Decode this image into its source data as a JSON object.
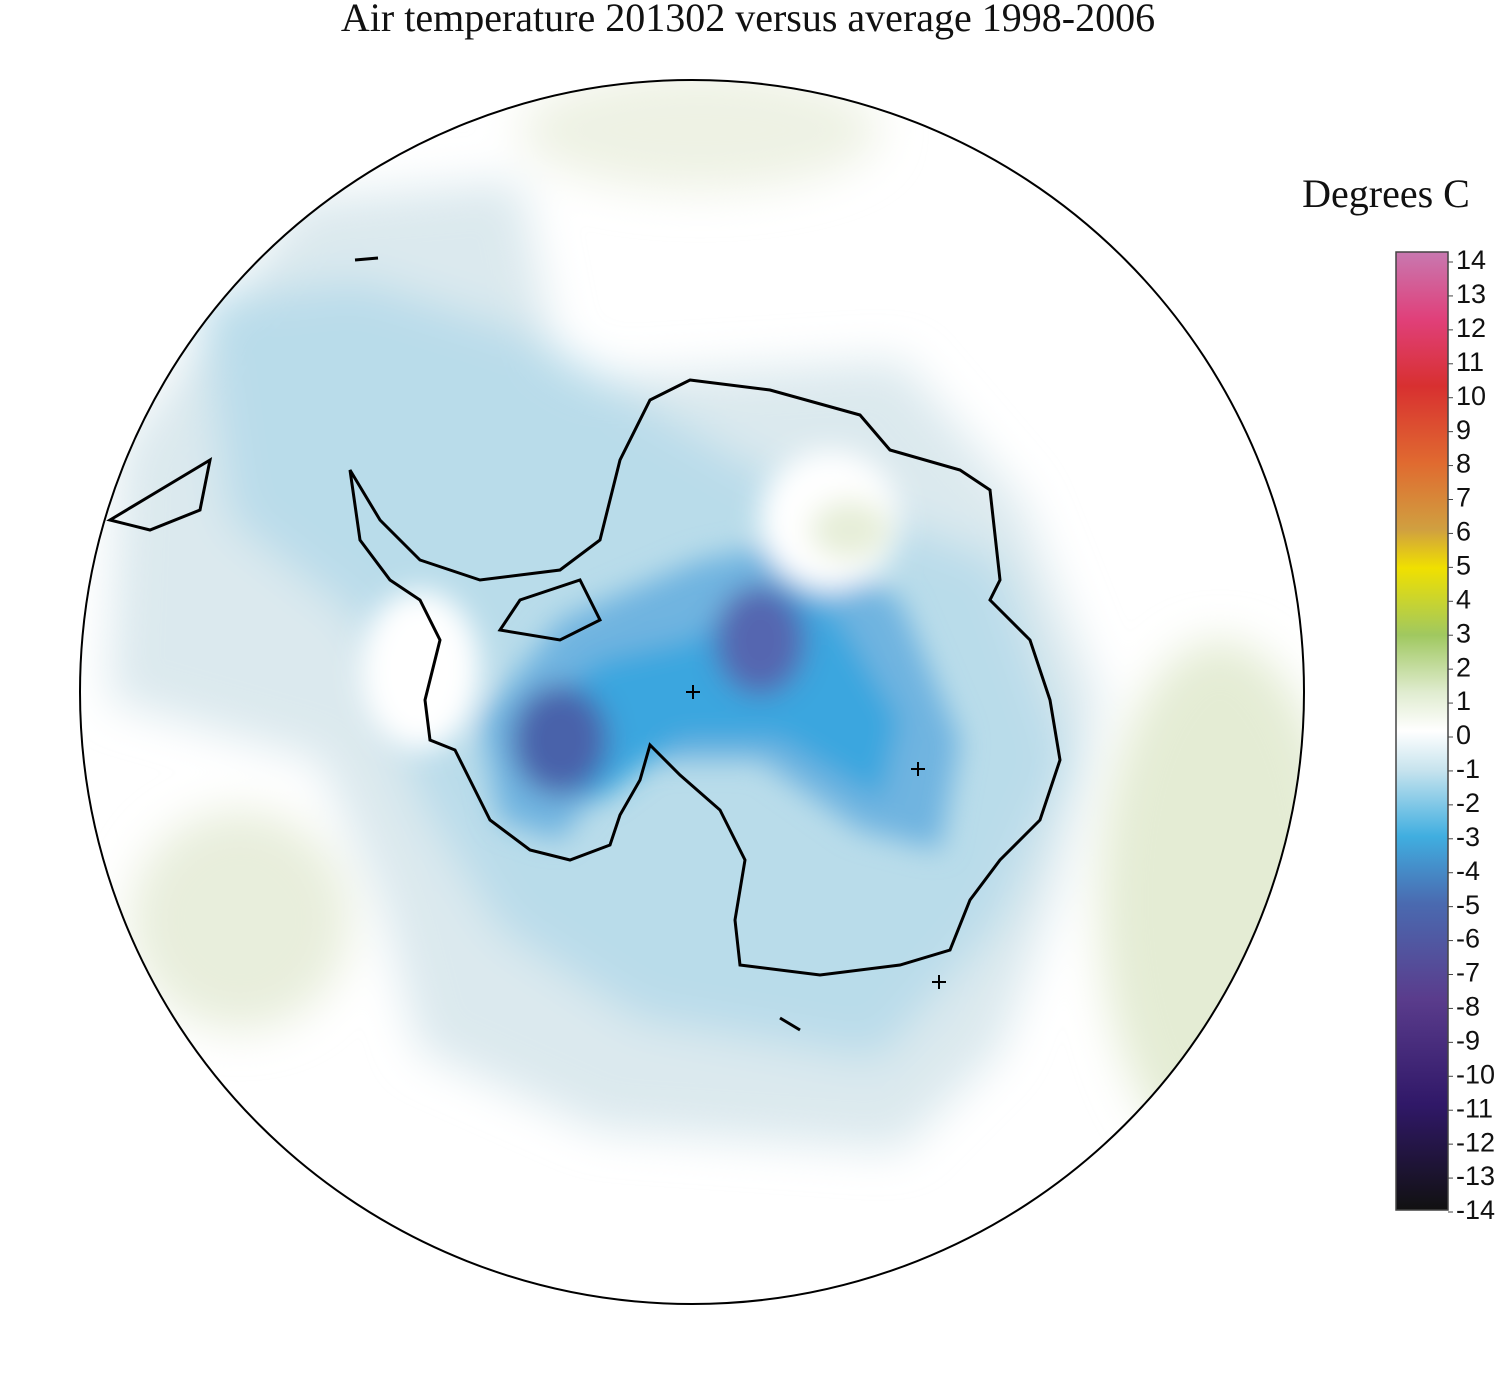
{
  "title": "Air temperature 201302 versus average 1998-2006",
  "colorbar": {
    "label": "Degrees C",
    "range": [
      -14,
      14
    ],
    "ticks": [
      14,
      13,
      12,
      11,
      10,
      9,
      8,
      7,
      6,
      5,
      4,
      3,
      2,
      1,
      0,
      -1,
      -2,
      -3,
      -4,
      -5,
      -6,
      -7,
      -8,
      -9,
      -10,
      -11,
      -12,
      -13,
      -14
    ]
  }
}
